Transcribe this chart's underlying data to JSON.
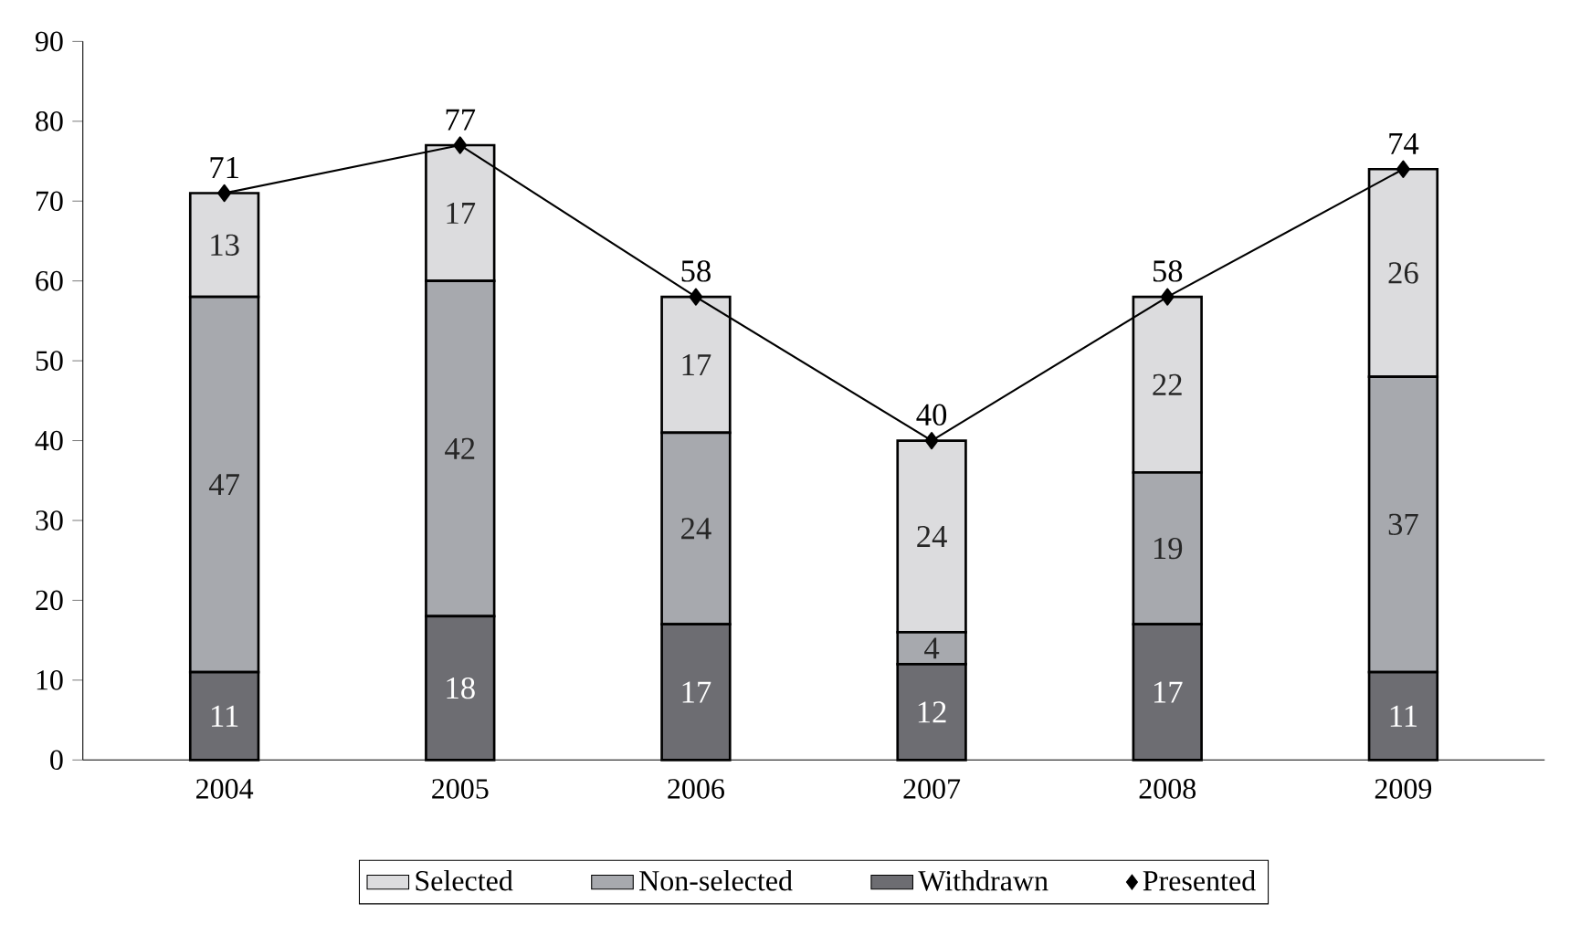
{
  "chart_data": {
    "type": "bar",
    "stacked": true,
    "categories": [
      "2004",
      "2005",
      "2006",
      "2007",
      "2008",
      "2009"
    ],
    "series": [
      {
        "name": "Withdrawn",
        "color": "#6d6d72",
        "values": [
          11,
          18,
          17,
          12,
          17,
          11
        ]
      },
      {
        "name": "Non-selected",
        "color": "#a7a9ae",
        "values": [
          47,
          42,
          24,
          4,
          19,
          37
        ]
      },
      {
        "name": "Selected",
        "color": "#dcdcde",
        "values": [
          13,
          17,
          17,
          24,
          22,
          26
        ]
      },
      {
        "name": "Presented",
        "type": "line",
        "color": "#000000",
        "values": [
          71,
          77,
          58,
          40,
          58,
          74
        ]
      }
    ],
    "ylim": [
      0,
      90
    ],
    "yticks": [
      0,
      10,
      20,
      30,
      40,
      50,
      60,
      70,
      80,
      90
    ],
    "data_labels": true,
    "marker": "diamond",
    "legend": "bottom"
  }
}
